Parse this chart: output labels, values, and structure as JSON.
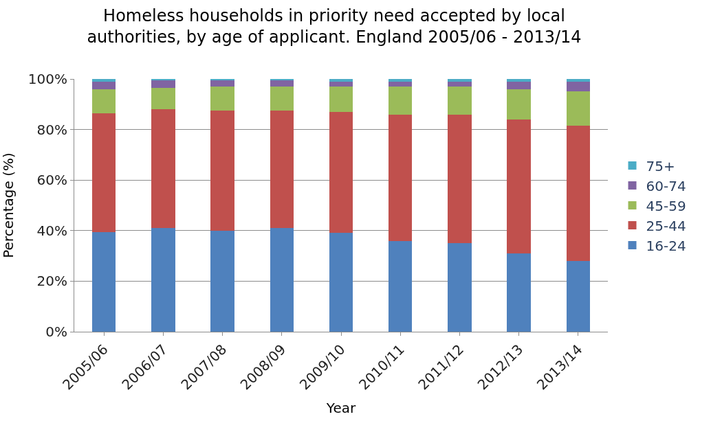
{
  "chart_data": {
    "type": "bar",
    "stacked": true,
    "title": "Homeless households in priority need accepted by local\nauthorities, by age of applicant. England 2005/06 - 2013/14",
    "xlabel": "Year",
    "ylabel": "Percentage (%)",
    "categories": [
      "2005/06",
      "2006/07",
      "2007/08",
      "2008/09",
      "2009/10",
      "2010/11",
      "2011/12",
      "2012/13",
      "2013/14"
    ],
    "series": [
      {
        "name": "16-24",
        "color": "#4f81bd",
        "values": [
          39.5,
          41,
          40,
          41,
          39,
          36,
          35,
          31,
          28
        ]
      },
      {
        "name": "25-44",
        "color": "#c0504d",
        "values": [
          47,
          47,
          47.5,
          46.5,
          48,
          50,
          51,
          53,
          53.5
        ]
      },
      {
        "name": "45-59",
        "color": "#9bbb59",
        "values": [
          9.5,
          8.5,
          9.5,
          9.5,
          10,
          11,
          11,
          12,
          13.5
        ]
      },
      {
        "name": "60-74",
        "color": "#8064a2",
        "values": [
          3,
          3,
          2.5,
          2.5,
          2,
          2,
          2,
          3,
          4
        ]
      },
      {
        "name": "75+",
        "color": "#4bacc6",
        "values": [
          1,
          0.5,
          0.5,
          0.5,
          1,
          1,
          1,
          1,
          1
        ]
      }
    ],
    "ylim": [
      0,
      100
    ],
    "yticks": [
      {
        "value": 0,
        "label": "0%"
      },
      {
        "value": 20,
        "label": "20%"
      },
      {
        "value": 40,
        "label": "40%"
      },
      {
        "value": 60,
        "label": "60%"
      },
      {
        "value": 80,
        "label": "80%"
      },
      {
        "value": 100,
        "label": "100%"
      }
    ],
    "grid": "y",
    "legend": "right"
  }
}
